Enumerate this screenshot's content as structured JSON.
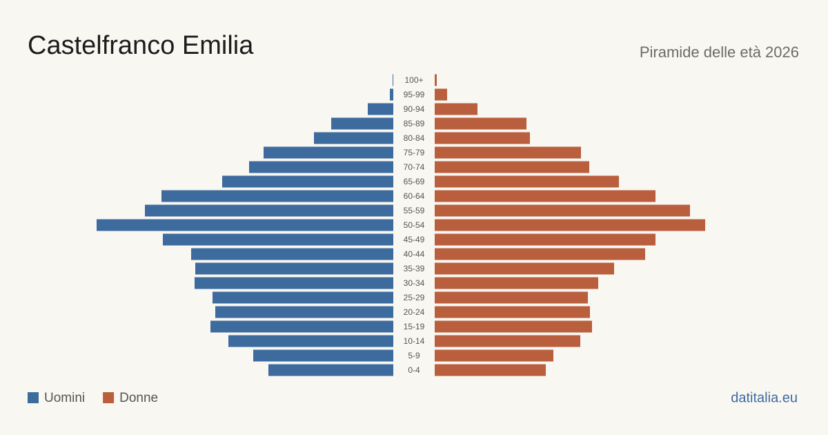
{
  "chart_data": {
    "type": "pyramid",
    "title": "Castelfranco Emilia",
    "subtitle": "Piramide delle età 2026",
    "source": "datitalia.eu",
    "categories": [
      "100+",
      "95-99",
      "90-94",
      "85-89",
      "80-84",
      "75-79",
      "70-74",
      "65-69",
      "60-64",
      "55-59",
      "50-54",
      "45-49",
      "40-44",
      "35-39",
      "30-34",
      "25-29",
      "20-24",
      "15-19",
      "10-14",
      "5-9",
      "0-4"
    ],
    "series": [
      {
        "name": "Uomini",
        "color": "#3d6b9e",
        "values": [
          3,
          15,
          111,
          270,
          345,
          564,
          627,
          744,
          1008,
          1080,
          1290,
          1002,
          879,
          861,
          864,
          786,
          774,
          795,
          717,
          609,
          543
        ]
      },
      {
        "name": "Donne",
        "color": "#b95f3e",
        "values": [
          9,
          54,
          186,
          399,
          414,
          636,
          672,
          801,
          960,
          1110,
          1176,
          960,
          915,
          780,
          711,
          666,
          675,
          684,
          633,
          516,
          483
        ]
      }
    ]
  }
}
